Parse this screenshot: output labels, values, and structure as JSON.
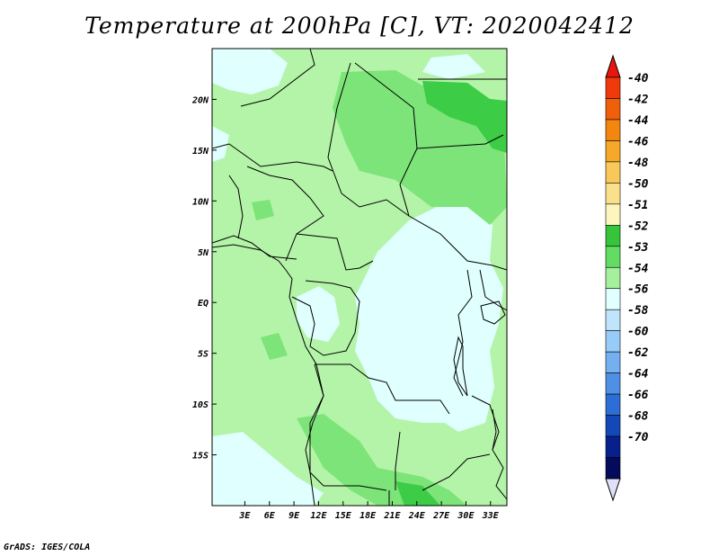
{
  "title": "Temperature at 200hPa [C], VT: 2020042412",
  "credit": "GrADS: IGES/COLA",
  "map": {
    "lon_range": [
      -1,
      35
    ],
    "lat_range": [
      -20,
      25
    ],
    "lon_ticks": [
      {
        "value": 3,
        "label": "3E"
      },
      {
        "value": 6,
        "label": "6E"
      },
      {
        "value": 9,
        "label": "9E"
      },
      {
        "value": 12,
        "label": "12E"
      },
      {
        "value": 15,
        "label": "15E"
      },
      {
        "value": 18,
        "label": "18E"
      },
      {
        "value": 21,
        "label": "21E"
      },
      {
        "value": 24,
        "label": "24E"
      },
      {
        "value": 27,
        "label": "27E"
      },
      {
        "value": 30,
        "label": "30E"
      },
      {
        "value": 33,
        "label": "33E"
      }
    ],
    "lat_ticks": [
      {
        "value": 20,
        "label": "20N"
      },
      {
        "value": 15,
        "label": "15N"
      },
      {
        "value": 10,
        "label": "10N"
      },
      {
        "value": 5,
        "label": "5N"
      },
      {
        "value": 0,
        "label": "EQ"
      },
      {
        "value": -5,
        "label": "5S"
      },
      {
        "value": -10,
        "label": "10S"
      },
      {
        "value": -15,
        "label": "15S"
      }
    ]
  },
  "colorbar": {
    "labels": [
      "-40",
      "-42",
      "-44",
      "-46",
      "-48",
      "-50",
      "-51",
      "-52",
      "-53",
      "-54",
      "-56",
      "-58",
      "-60",
      "-62",
      "-64",
      "-66",
      "-68",
      "-70"
    ],
    "top_color": "#e8160e",
    "bottom_color": "#e0e0f8",
    "colors": [
      "#ef3a0c",
      "#f0600a",
      "#f2860e",
      "#f6a82a",
      "#f9c85a",
      "#fbe08c",
      "#fcf6be",
      "#35c43a",
      "#62dc62",
      "#a4f09c",
      "#e0ffff",
      "#c0e4fc",
      "#98ccf8",
      "#74b0f0",
      "#4e90e4",
      "#2c6ed6",
      "#1448b8",
      "#08208c",
      "#040a5c"
    ]
  },
  "field_colors": {
    "lt_minus54": "#e0ffff",
    "minus54_minus53": "#b4f4a8",
    "minus53_minus52": "#7ce478",
    "minus52_minus51": "#3ccc46"
  }
}
